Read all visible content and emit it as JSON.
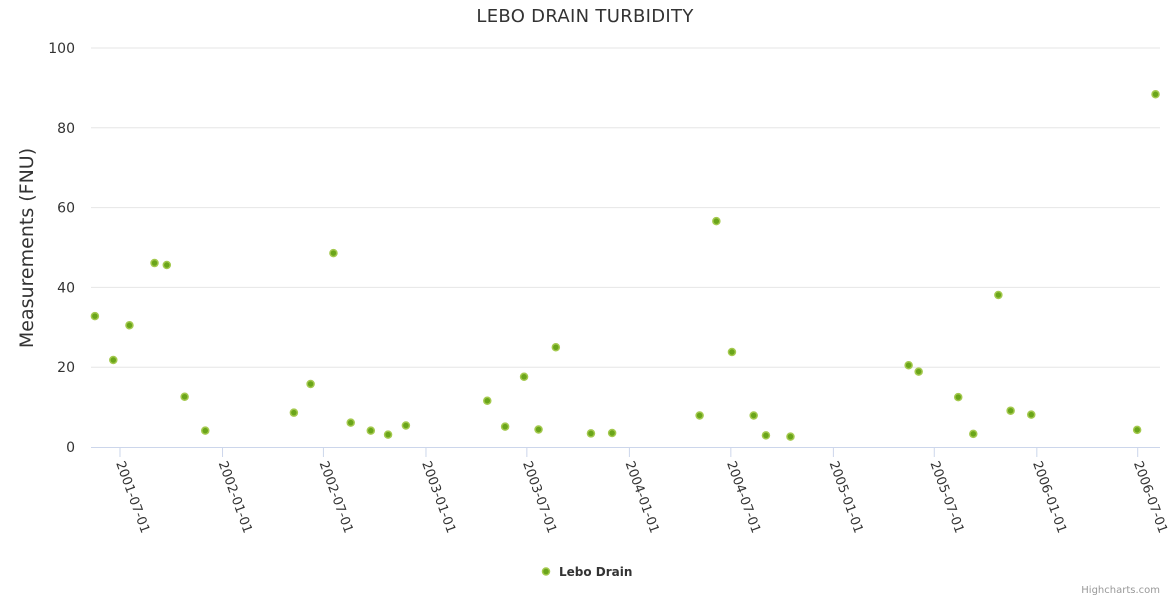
{
  "chart_data": {
    "type": "scatter",
    "title": "LEBO DRAIN TURBIDITY",
    "xlabel": "",
    "ylabel": "Measurements (FNU)",
    "ylim": [
      0,
      100
    ],
    "yticks": [
      0,
      20,
      40,
      60,
      80,
      100
    ],
    "xlim": [
      "2001-05-10",
      "2006-08-10"
    ],
    "xticks": [
      "2001-07-01",
      "2002-01-01",
      "2002-07-01",
      "2003-01-01",
      "2003-07-01",
      "2004-01-01",
      "2004-07-01",
      "2005-01-01",
      "2005-07-01",
      "2006-01-01",
      "2006-07-01"
    ],
    "grid": true,
    "legend_position": "bottom-center",
    "marker_color": "#6aa51a",
    "marker_stroke": "#a4c94e",
    "series": [
      {
        "name": "Lebo Drain",
        "points": [
          {
            "x": "2001-05-17",
            "y": 32.8
          },
          {
            "x": "2001-06-19",
            "y": 21.8
          },
          {
            "x": "2001-07-18",
            "y": 30.5
          },
          {
            "x": "2001-09-01",
            "y": 46.1
          },
          {
            "x": "2001-09-23",
            "y": 45.6
          },
          {
            "x": "2001-10-25",
            "y": 12.6
          },
          {
            "x": "2001-12-01",
            "y": 4.1
          },
          {
            "x": "2002-05-09",
            "y": 8.6
          },
          {
            "x": "2002-06-08",
            "y": 15.8
          },
          {
            "x": "2002-07-19",
            "y": 48.6
          },
          {
            "x": "2002-08-19",
            "y": 6.1
          },
          {
            "x": "2002-09-24",
            "y": 4.1
          },
          {
            "x": "2002-10-25",
            "y": 3.1
          },
          {
            "x": "2002-11-26",
            "y": 5.4
          },
          {
            "x": "2003-04-21",
            "y": 11.6
          },
          {
            "x": "2003-05-23",
            "y": 5.1
          },
          {
            "x": "2003-06-26",
            "y": 17.6
          },
          {
            "x": "2003-07-22",
            "y": 4.4
          },
          {
            "x": "2003-08-22",
            "y": 25.0
          },
          {
            "x": "2003-10-24",
            "y": 3.4
          },
          {
            "x": "2003-12-01",
            "y": 3.5
          },
          {
            "x": "2004-05-06",
            "y": 7.9
          },
          {
            "x": "2004-06-05",
            "y": 56.6
          },
          {
            "x": "2004-07-03",
            "y": 23.8
          },
          {
            "x": "2004-08-11",
            "y": 7.9
          },
          {
            "x": "2004-09-02",
            "y": 2.9
          },
          {
            "x": "2004-10-16",
            "y": 2.6
          },
          {
            "x": "2005-05-16",
            "y": 20.5
          },
          {
            "x": "2005-06-03",
            "y": 18.9
          },
          {
            "x": "2005-08-13",
            "y": 12.5
          },
          {
            "x": "2005-09-09",
            "y": 3.3
          },
          {
            "x": "2005-10-24",
            "y": 38.1
          },
          {
            "x": "2005-11-15",
            "y": 9.1
          },
          {
            "x": "2005-12-22",
            "y": 8.1
          },
          {
            "x": "2006-06-30",
            "y": 4.3
          },
          {
            "x": "2006-08-02",
            "y": 88.4
          }
        ]
      }
    ]
  },
  "credits": "Highcharts.com"
}
